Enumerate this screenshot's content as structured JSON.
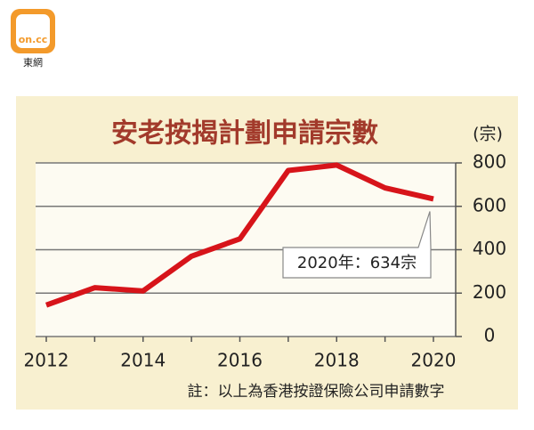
{
  "logo": {
    "mark": "on.cc",
    "name": "東網"
  },
  "chart_data": {
    "type": "line",
    "title": "安老按揭計劃申請宗數",
    "y_unit": "(宗)",
    "x": [
      2012,
      2013,
      2014,
      2015,
      2016,
      2017,
      2018,
      2019,
      2020
    ],
    "xlim": [
      2012,
      2020
    ],
    "xticks": [
      2012,
      2014,
      2016,
      2018,
      2020
    ],
    "series": [
      {
        "name": "申請宗數",
        "color": "#d7141a",
        "values": [
          145,
          225,
          210,
          370,
          450,
          765,
          790,
          685,
          634
        ]
      }
    ],
    "ylim": [
      0,
      800
    ],
    "yticks": [
      0,
      200,
      400,
      600,
      800
    ],
    "grid": true,
    "annotation": "2020年：634宗",
    "note": "註：以上為香港按證保險公司申請數字"
  }
}
